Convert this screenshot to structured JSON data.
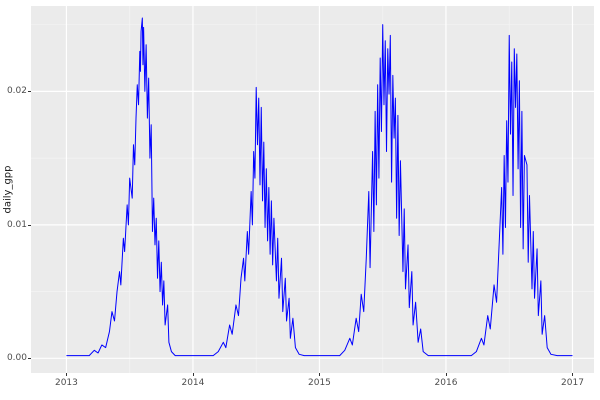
{
  "figure": {
    "background": "#FFFFFF",
    "panel_background": "#EBEBEB",
    "grid_major_color": "#FFFFFF",
    "grid_minor_color": "#F4F4F4",
    "line_color": "#0000FF",
    "axis_text_color": "#4D4D4D",
    "tick_mark_color": "#333333"
  },
  "chart_data": {
    "type": "line",
    "title": "",
    "xlabel": "",
    "ylabel": "daily_gpp",
    "legend": false,
    "grid": true,
    "xlim": [
      2012.72,
      2017.17
    ],
    "ylim": [
      -0.0011,
      0.0264
    ],
    "x_ticks": [
      2013,
      2014,
      2015,
      2016,
      2017
    ],
    "x_tick_labels": [
      "2013",
      "2014",
      "2015",
      "2016",
      "2017"
    ],
    "y_ticks": [
      0.0,
      0.01,
      0.02
    ],
    "y_tick_labels": [
      "0.00",
      "0.01",
      "0.02"
    ],
    "x_minor_ticks": [
      2013.5,
      2014.5,
      2015.5,
      2016.5
    ],
    "y_minor_ticks": [
      0.005,
      0.015,
      0.025
    ],
    "series": [
      {
        "name": "daily_gpp",
        "color": "#0000FF",
        "points": [
          [
            2013.0,
            0.0002
          ],
          [
            2013.18,
            0.0002
          ],
          [
            2013.22,
            0.0006
          ],
          [
            2013.25,
            0.0004
          ],
          [
            2013.28,
            0.001
          ],
          [
            2013.31,
            0.0008
          ],
          [
            2013.34,
            0.002
          ],
          [
            2013.36,
            0.0035
          ],
          [
            2013.38,
            0.0028
          ],
          [
            2013.4,
            0.005
          ],
          [
            2013.42,
            0.0065
          ],
          [
            2013.43,
            0.0055
          ],
          [
            2013.45,
            0.009
          ],
          [
            2013.46,
            0.008
          ],
          [
            2013.48,
            0.0115
          ],
          [
            2013.49,
            0.01
          ],
          [
            2013.5,
            0.0135
          ],
          [
            2013.52,
            0.012
          ],
          [
            2013.53,
            0.016
          ],
          [
            2013.54,
            0.0145
          ],
          [
            2013.55,
            0.018
          ],
          [
            2013.56,
            0.0205
          ],
          [
            2013.57,
            0.019
          ],
          [
            2013.58,
            0.023
          ],
          [
            2013.585,
            0.0215
          ],
          [
            2013.59,
            0.0245
          ],
          [
            2013.6,
            0.0255
          ],
          [
            2013.605,
            0.022
          ],
          [
            2013.61,
            0.0248
          ],
          [
            2013.62,
            0.02
          ],
          [
            2013.63,
            0.0235
          ],
          [
            2013.64,
            0.018
          ],
          [
            2013.65,
            0.021
          ],
          [
            2013.66,
            0.015
          ],
          [
            2013.67,
            0.0175
          ],
          [
            2013.68,
            0.0095
          ],
          [
            2013.69,
            0.012
          ],
          [
            2013.7,
            0.0085
          ],
          [
            2013.71,
            0.0105
          ],
          [
            2013.72,
            0.006
          ],
          [
            2013.73,
            0.0088
          ],
          [
            2013.74,
            0.005
          ],
          [
            2013.75,
            0.0072
          ],
          [
            2013.76,
            0.004
          ],
          [
            2013.77,
            0.0058
          ],
          [
            2013.78,
            0.0025
          ],
          [
            2013.8,
            0.004
          ],
          [
            2013.81,
            0.0012
          ],
          [
            2013.83,
            0.0005
          ],
          [
            2013.86,
            0.0002
          ],
          [
            2014.16,
            0.0002
          ],
          [
            2014.2,
            0.0005
          ],
          [
            2014.24,
            0.0012
          ],
          [
            2014.26,
            0.0008
          ],
          [
            2014.29,
            0.0025
          ],
          [
            2014.31,
            0.0018
          ],
          [
            2014.34,
            0.004
          ],
          [
            2014.36,
            0.0032
          ],
          [
            2014.38,
            0.006
          ],
          [
            2014.4,
            0.0075
          ],
          [
            2014.41,
            0.0058
          ],
          [
            2014.43,
            0.0095
          ],
          [
            2014.44,
            0.0078
          ],
          [
            2014.46,
            0.0125
          ],
          [
            2014.47,
            0.01
          ],
          [
            2014.48,
            0.0155
          ],
          [
            2014.49,
            0.0135
          ],
          [
            2014.5,
            0.0203
          ],
          [
            2014.51,
            0.016
          ],
          [
            2014.52,
            0.0195
          ],
          [
            2014.53,
            0.013
          ],
          [
            2014.54,
            0.0188
          ],
          [
            2014.55,
            0.0118
          ],
          [
            2014.56,
            0.0162
          ],
          [
            2014.57,
            0.0098
          ],
          [
            2014.58,
            0.0142
          ],
          [
            2014.59,
            0.0088
          ],
          [
            2014.6,
            0.0128
          ],
          [
            2014.61,
            0.0078
          ],
          [
            2014.62,
            0.0118
          ],
          [
            2014.63,
            0.007
          ],
          [
            2014.64,
            0.0105
          ],
          [
            2014.66,
            0.0058
          ],
          [
            2014.67,
            0.009
          ],
          [
            2014.68,
            0.0045
          ],
          [
            2014.7,
            0.0075
          ],
          [
            2014.71,
            0.0035
          ],
          [
            2014.73,
            0.006
          ],
          [
            2014.74,
            0.0028
          ],
          [
            2014.76,
            0.0045
          ],
          [
            2014.77,
            0.0015
          ],
          [
            2014.79,
            0.003
          ],
          [
            2014.81,
            0.0008
          ],
          [
            2014.84,
            0.0003
          ],
          [
            2014.88,
            0.0002
          ],
          [
            2015.16,
            0.0002
          ],
          [
            2015.2,
            0.0006
          ],
          [
            2015.24,
            0.0015
          ],
          [
            2015.26,
            0.001
          ],
          [
            2015.29,
            0.003
          ],
          [
            2015.31,
            0.002
          ],
          [
            2015.33,
            0.0048
          ],
          [
            2015.35,
            0.0035
          ],
          [
            2015.37,
            0.0075
          ],
          [
            2015.39,
            0.0125
          ],
          [
            2015.4,
            0.0068
          ],
          [
            2015.42,
            0.0155
          ],
          [
            2015.43,
            0.0095
          ],
          [
            2015.44,
            0.0185
          ],
          [
            2015.45,
            0.0115
          ],
          [
            2015.46,
            0.0205
          ],
          [
            2015.47,
            0.0135
          ],
          [
            2015.48,
            0.0225
          ],
          [
            2015.49,
            0.017
          ],
          [
            2015.5,
            0.025
          ],
          [
            2015.51,
            0.019
          ],
          [
            2015.52,
            0.0238
          ],
          [
            2015.53,
            0.0155
          ],
          [
            2015.54,
            0.0232
          ],
          [
            2015.55,
            0.0198
          ],
          [
            2015.56,
            0.0242
          ],
          [
            2015.57,
            0.0132
          ],
          [
            2015.58,
            0.0212
          ],
          [
            2015.59,
            0.0165
          ],
          [
            2015.6,
            0.0195
          ],
          [
            2015.61,
            0.0105
          ],
          [
            2015.62,
            0.0182
          ],
          [
            2015.63,
            0.0092
          ],
          [
            2015.64,
            0.0148
          ],
          [
            2015.66,
            0.0065
          ],
          [
            2015.67,
            0.0112
          ],
          [
            2015.68,
            0.0052
          ],
          [
            2015.7,
            0.0085
          ],
          [
            2015.71,
            0.0038
          ],
          [
            2015.73,
            0.0065
          ],
          [
            2015.74,
            0.0025
          ],
          [
            2015.76,
            0.0042
          ],
          [
            2015.78,
            0.0012
          ],
          [
            2015.8,
            0.0022
          ],
          [
            2015.82,
            0.0005
          ],
          [
            2015.86,
            0.0002
          ],
          [
            2016.2,
            0.0002
          ],
          [
            2016.24,
            0.0005
          ],
          [
            2016.28,
            0.0015
          ],
          [
            2016.3,
            0.001
          ],
          [
            2016.33,
            0.0032
          ],
          [
            2016.35,
            0.0022
          ],
          [
            2016.38,
            0.0055
          ],
          [
            2016.4,
            0.0042
          ],
          [
            2016.42,
            0.0085
          ],
          [
            2016.44,
            0.0128
          ],
          [
            2016.45,
            0.0078
          ],
          [
            2016.46,
            0.0152
          ],
          [
            2016.47,
            0.0098
          ],
          [
            2016.48,
            0.0178
          ],
          [
            2016.49,
            0.0132
          ],
          [
            2016.5,
            0.0242
          ],
          [
            2016.51,
            0.0168
          ],
          [
            2016.52,
            0.0222
          ],
          [
            2016.53,
            0.0122
          ],
          [
            2016.54,
            0.0232
          ],
          [
            2016.55,
            0.0188
          ],
          [
            2016.56,
            0.0228
          ],
          [
            2016.57,
            0.0142
          ],
          [
            2016.58,
            0.0208
          ],
          [
            2016.59,
            0.0098
          ],
          [
            2016.6,
            0.0185
          ],
          [
            2016.61,
            0.0082
          ],
          [
            2016.62,
            0.0152
          ],
          [
            2016.64,
            0.0145
          ],
          [
            2016.65,
            0.0072
          ],
          [
            2016.66,
            0.0122
          ],
          [
            2016.68,
            0.0052
          ],
          [
            2016.69,
            0.0095
          ],
          [
            2016.7,
            0.0045
          ],
          [
            2016.72,
            0.0082
          ],
          [
            2016.73,
            0.0032
          ],
          [
            2016.75,
            0.0058
          ],
          [
            2016.76,
            0.0018
          ],
          [
            2016.78,
            0.0032
          ],
          [
            2016.8,
            0.0008
          ],
          [
            2016.83,
            0.0003
          ],
          [
            2016.88,
            0.0002
          ],
          [
            2017.0,
            0.0002
          ]
        ]
      }
    ]
  }
}
